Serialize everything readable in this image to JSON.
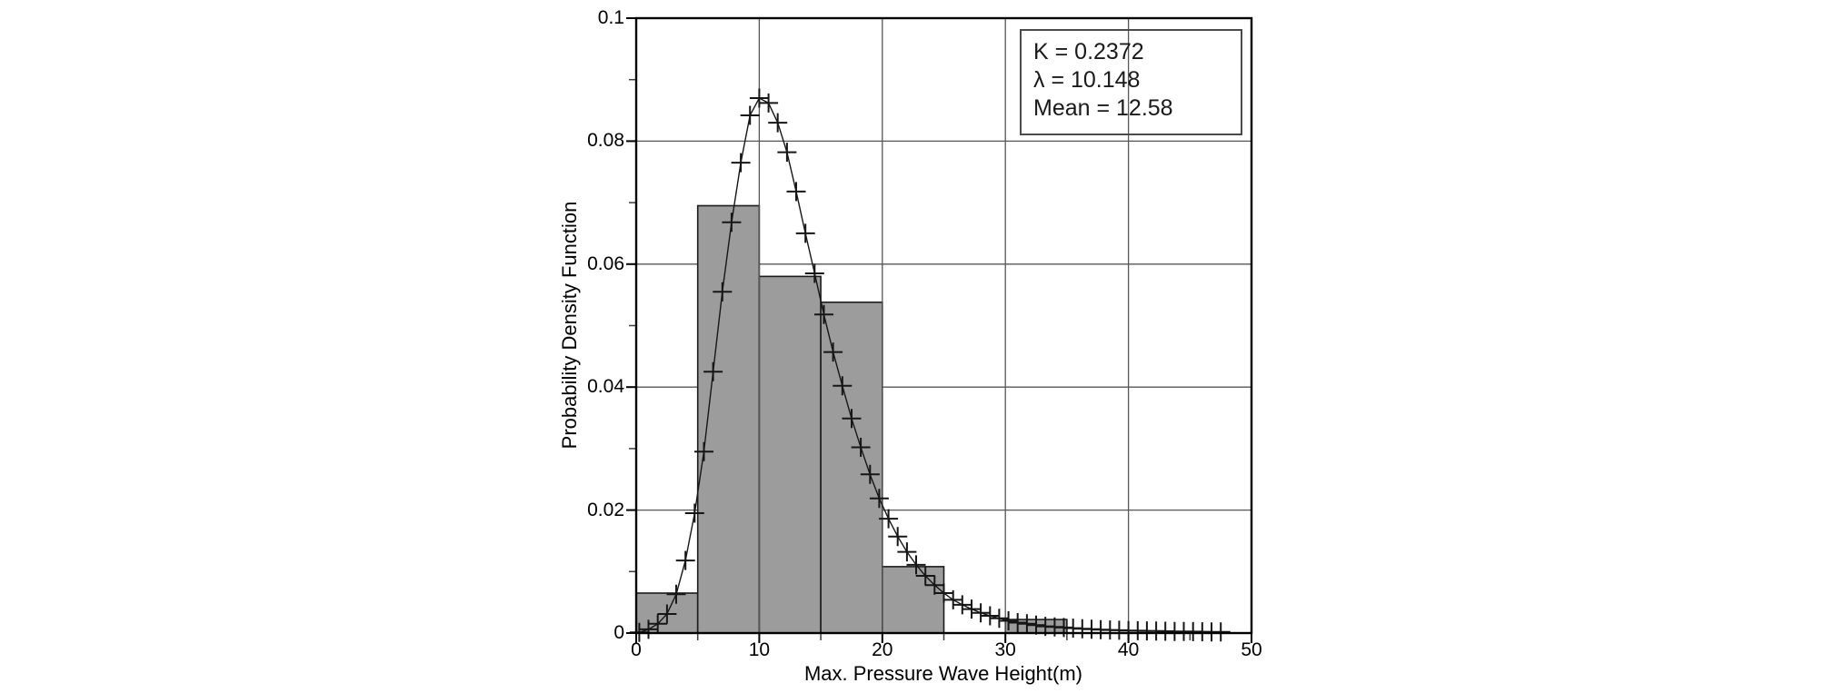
{
  "chart_data": {
    "type": "bar",
    "subtype": "histogram-with-fitted-pdf",
    "title": "",
    "xlabel": "Max. Pressure Wave Height(m)",
    "ylabel": "Probability Density Function",
    "xlim": [
      0,
      50
    ],
    "ylim": [
      0,
      0.1
    ],
    "grid": "on",
    "grid_x": [
      10,
      20,
      30,
      40
    ],
    "grid_y": [
      0.02,
      0.04,
      0.06,
      0.08
    ],
    "x_ticks": [
      {
        "v": 0,
        "label": "0"
      },
      {
        "v": 10,
        "label": "10"
      },
      {
        "v": 20,
        "label": "20"
      },
      {
        "v": 30,
        "label": "30"
      },
      {
        "v": 40,
        "label": "40"
      },
      {
        "v": 50,
        "label": "50"
      }
    ],
    "x_minor_ticks": [
      5,
      15,
      25,
      35,
      45
    ],
    "y_ticks": [
      {
        "v": 0,
        "label": "0"
      },
      {
        "v": 0.02,
        "label": "0.02"
      },
      {
        "v": 0.04,
        "label": "0.04"
      },
      {
        "v": 0.06,
        "label": "0.06"
      },
      {
        "v": 0.08,
        "label": "0.08"
      },
      {
        "v": 0.1,
        "label": "0.1"
      }
    ],
    "y_minor_ticks": [
      0.01,
      0.03,
      0.05,
      0.07,
      0.09
    ],
    "histogram": {
      "bin_edges": [
        0,
        5,
        10,
        15,
        20,
        25,
        30,
        35,
        40,
        45,
        50
      ],
      "densities": [
        0.0065,
        0.0695,
        0.058,
        0.0538,
        0.0108,
        0,
        0.0022,
        0,
        0,
        0
      ]
    },
    "fit_curve": {
      "marker": "plus",
      "points": [
        [
          0.25,
          0.0001
        ],
        [
          1,
          0.0006
        ],
        [
          1.75,
          0.0015
        ],
        [
          2.5,
          0.0031
        ],
        [
          3.25,
          0.0063
        ],
        [
          4,
          0.0118
        ],
        [
          4.75,
          0.0195
        ],
        [
          5.5,
          0.0295
        ],
        [
          6.25,
          0.0425
        ],
        [
          7,
          0.0555
        ],
        [
          7.75,
          0.0668
        ],
        [
          8.5,
          0.0765
        ],
        [
          9.25,
          0.0842
        ],
        [
          10,
          0.087
        ],
        [
          10.75,
          0.0862
        ],
        [
          11.5,
          0.083
        ],
        [
          12.25,
          0.0782
        ],
        [
          13,
          0.0718
        ],
        [
          13.75,
          0.065
        ],
        [
          14.5,
          0.0585
        ],
        [
          15.25,
          0.0518
        ],
        [
          16,
          0.0457
        ],
        [
          16.75,
          0.0402
        ],
        [
          17.5,
          0.0349
        ],
        [
          18.25,
          0.0302
        ],
        [
          19,
          0.0258
        ],
        [
          19.75,
          0.0219
        ],
        [
          20.5,
          0.0186
        ],
        [
          21.25,
          0.0157
        ],
        [
          22,
          0.0132
        ],
        [
          22.75,
          0.0111
        ],
        [
          23.5,
          0.0093
        ],
        [
          24.25,
          0.0078
        ],
        [
          25,
          0.0065
        ],
        [
          25.75,
          0.0054
        ],
        [
          26.5,
          0.0046
        ],
        [
          27.25,
          0.0039
        ],
        [
          28,
          0.0033
        ],
        [
          28.75,
          0.0028
        ],
        [
          29.5,
          0.0024
        ],
        [
          30.25,
          0.002
        ],
        [
          31,
          0.0017
        ],
        [
          31.75,
          0.0015
        ],
        [
          32.5,
          0.0013
        ],
        [
          33.25,
          0.0011
        ],
        [
          34,
          0.001
        ],
        [
          34.75,
          0.0009
        ],
        [
          35.5,
          0.0008
        ],
        [
          36.25,
          0.0007
        ],
        [
          37,
          0.00062
        ],
        [
          37.75,
          0.00056
        ],
        [
          38.5,
          0.0005
        ],
        [
          39.25,
          0.00046
        ],
        [
          40,
          0.00042
        ],
        [
          40.75,
          0.00038
        ],
        [
          41.5,
          0.00035
        ],
        [
          42.25,
          0.00032
        ],
        [
          43,
          0.00029
        ],
        [
          43.75,
          0.00027
        ],
        [
          44.5,
          0.00025
        ],
        [
          45.25,
          0.00023
        ],
        [
          46,
          0.00021
        ],
        [
          46.75,
          0.00019
        ],
        [
          47.5,
          0.00017
        ]
      ]
    },
    "fit_params": {
      "K": 0.2372,
      "lambda": 10.148,
      "mean": 12.58
    },
    "legend_lines": [
      "K = 0.2372",
      "λ = 10.148",
      "Mean = 12.58"
    ],
    "colors": {
      "bar_fill": "#9c9c9c",
      "bar_edge": "#1c1c1c",
      "grid": "#565656",
      "frame": "#000000",
      "curve": "#161616",
      "marker": "#161616",
      "text": "#000000",
      "legend_border": "#4b4b4b"
    }
  }
}
